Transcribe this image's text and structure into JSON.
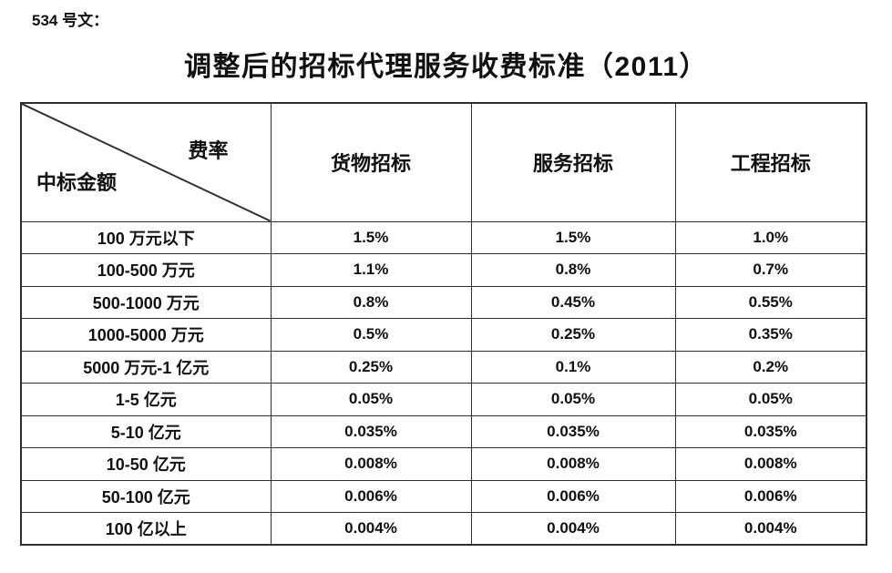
{
  "page": {
    "doc_number": "534 号文：",
    "title": "调整后的招标代理服务收费标准（2011）"
  },
  "table": {
    "corner": {
      "top_right": "费率",
      "bottom_left": "中标金额"
    },
    "columns": [
      "货物招标",
      "服务招标",
      "工程招标"
    ],
    "rows": [
      {
        "label": "100 万元以下",
        "values": [
          "1.5%",
          "1.5%",
          "1.0%"
        ]
      },
      {
        "label": "100-500 万元",
        "values": [
          "1.1%",
          "0.8%",
          "0.7%"
        ]
      },
      {
        "label": "500-1000 万元",
        "values": [
          "0.8%",
          "0.45%",
          "0.55%"
        ]
      },
      {
        "label": "1000-5000 万元",
        "values": [
          "0.5%",
          "0.25%",
          "0.35%"
        ]
      },
      {
        "label": "5000 万元-1 亿元",
        "values": [
          "0.25%",
          "0.1%",
          "0.2%"
        ]
      },
      {
        "label": "1-5 亿元",
        "values": [
          "0.05%",
          "0.05%",
          "0.05%"
        ]
      },
      {
        "label": "5-10 亿元",
        "values": [
          "0.035%",
          "0.035%",
          "0.035%"
        ]
      },
      {
        "label": "10-50 亿元",
        "values": [
          "0.008%",
          "0.008%",
          "0.008%"
        ]
      },
      {
        "label": "50-100 亿元",
        "values": [
          "0.006%",
          "0.006%",
          "0.006%"
        ]
      },
      {
        "label": "100 亿以上",
        "values": [
          "0.004%",
          "0.004%",
          "0.004%"
        ]
      }
    ]
  },
  "colors": {
    "text": "#111111",
    "border": "#2e2e2e",
    "background": "#ffffff"
  }
}
